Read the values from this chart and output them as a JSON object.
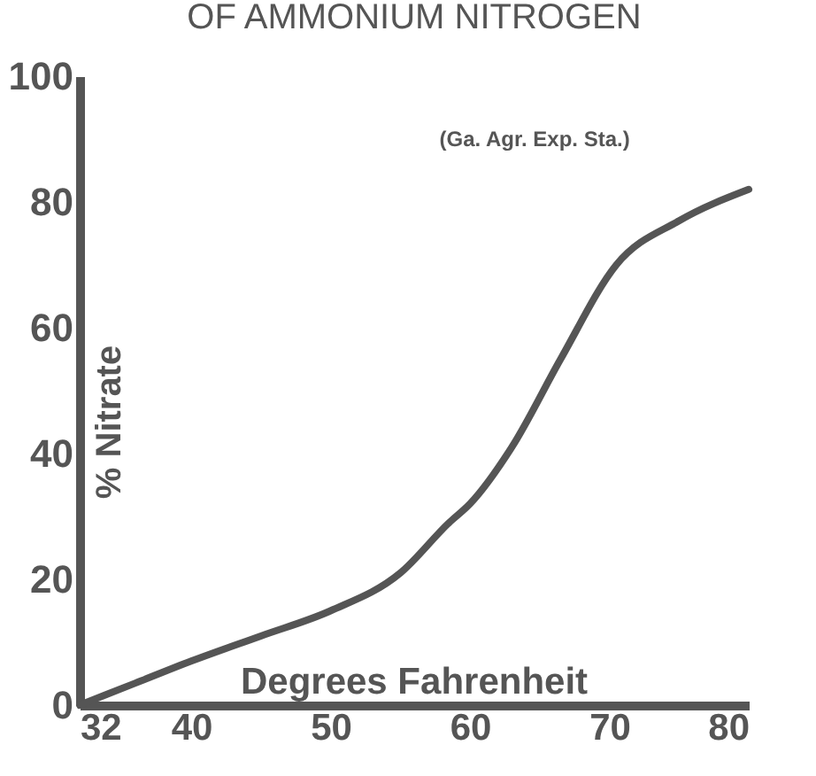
{
  "chart_data": {
    "type": "line",
    "title": "OF AMMONIUM NITROGEN",
    "xlabel": "Degrees Fahrenheit",
    "ylabel": "% Nitrate",
    "annotations": [
      "(Ga. Agr. Exp. Sta.)"
    ],
    "x": [
      32,
      36,
      40,
      45,
      50,
      55,
      58.5,
      60,
      63,
      66.5,
      70.5,
      75,
      80
    ],
    "series": [
      {
        "color": "#555555",
        "values": [
          0,
          3.5,
          7,
          11,
          15,
          21,
          29,
          32,
          41,
          55,
          70,
          77,
          82
        ]
      }
    ],
    "xlim": [
      32,
      80
    ],
    "xticks": [
      32,
      40,
      50,
      60,
      70,
      80
    ],
    "ylim": [
      0,
      100
    ],
    "yticks": [
      0,
      20,
      40,
      60,
      80,
      100
    ],
    "grid": false,
    "marker": "none",
    "line_style": "solid"
  }
}
